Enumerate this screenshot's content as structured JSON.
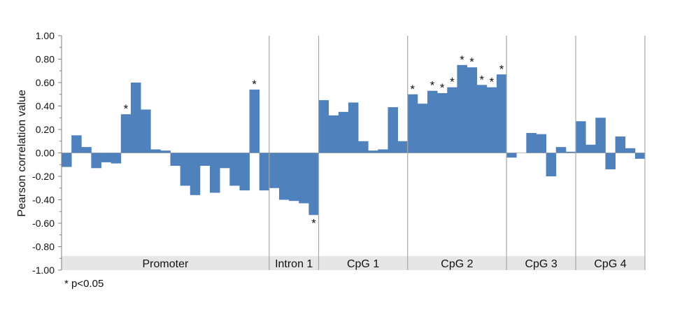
{
  "chart_data": {
    "type": "bar",
    "ylabel": "Pearson correlation value",
    "ylim": [
      -1.0,
      1.0
    ],
    "ytick_step": 0.2,
    "ytick_labels": [
      "1.00",
      "0.80",
      "0.60",
      "0.40",
      "0.20",
      "0.00",
      "-0.20",
      "-0.40",
      "-0.60",
      "-0.80",
      "-1.00"
    ],
    "grid": false,
    "bar_color": "#4f81bd",
    "label_band_color": "#e6e6e6",
    "values": [
      -0.12,
      0.15,
      0.05,
      -0.13,
      -0.08,
      -0.09,
      0.33,
      0.6,
      0.37,
      0.03,
      0.02,
      -0.11,
      -0.28,
      -0.36,
      -0.11,
      -0.34,
      -0.13,
      -0.28,
      -0.32,
      0.54,
      -0.32,
      -0.3,
      -0.4,
      -0.41,
      -0.43,
      -0.53,
      0.45,
      0.32,
      0.35,
      0.43,
      0.1,
      0.02,
      0.03,
      0.39,
      0.1,
      0.5,
      0.42,
      0.53,
      0.51,
      0.56,
      0.75,
      0.73,
      0.58,
      0.56,
      0.67,
      -0.04,
      0.0,
      0.17,
      0.16,
      -0.2,
      0.05,
      0.01,
      0.27,
      0.07,
      0.3,
      -0.14,
      0.14,
      0.04,
      -0.05
    ],
    "significant": [
      false,
      false,
      false,
      false,
      false,
      false,
      true,
      false,
      false,
      false,
      false,
      false,
      false,
      false,
      false,
      false,
      false,
      false,
      false,
      true,
      false,
      false,
      false,
      false,
      false,
      true,
      false,
      false,
      false,
      false,
      false,
      false,
      false,
      false,
      false,
      true,
      false,
      true,
      true,
      true,
      true,
      true,
      true,
      true,
      true,
      false,
      false,
      false,
      false,
      false,
      false,
      false,
      false,
      false,
      false,
      false,
      false,
      false,
      false
    ],
    "significance_marker": "*",
    "regions": [
      {
        "name": "Promoter",
        "count": 21
      },
      {
        "name": "Intron 1",
        "count": 5
      },
      {
        "name": "CpG 1",
        "count": 9
      },
      {
        "name": "CpG 2",
        "count": 10
      },
      {
        "name": "CpG 3",
        "count": 7
      },
      {
        "name": "CpG 4",
        "count": 7
      }
    ],
    "footnote": "* p<0.05"
  }
}
